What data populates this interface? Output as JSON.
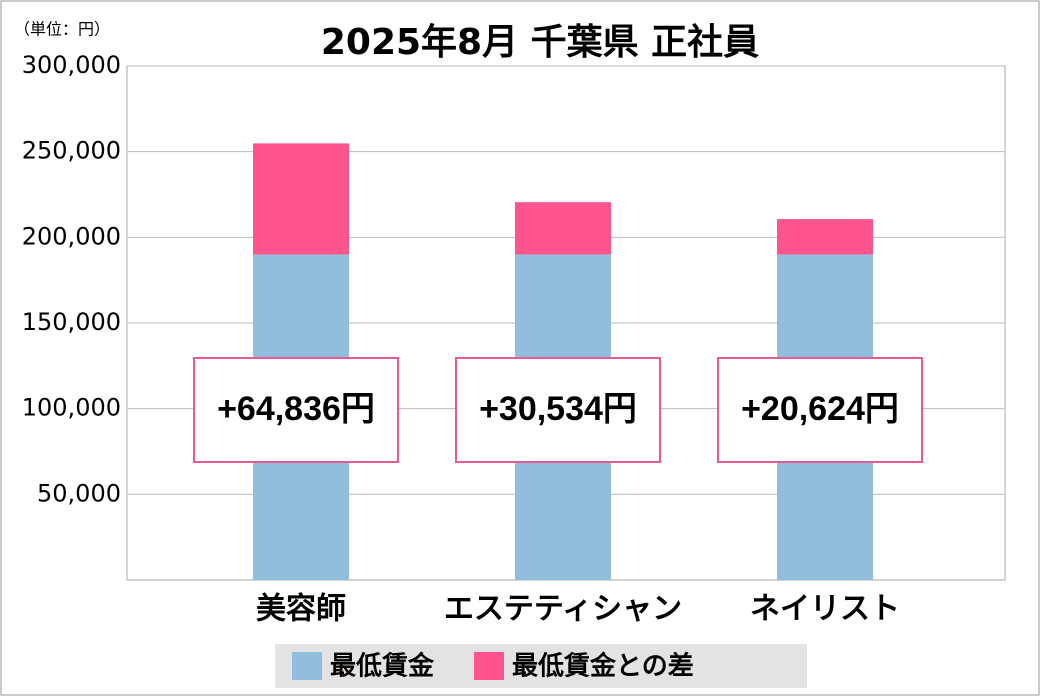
{
  "chart_data": {
    "type": "stacked_bar",
    "title": "2025年8月 千葉県 正社員",
    "unit_label": "（単位：円）",
    "categories": [
      "美容師",
      "エステティシャン",
      "ネイリスト"
    ],
    "series": [
      {
        "name": "最低賃金",
        "color": "#92bedd",
        "values": [
          190000,
          190000,
          190000
        ]
      },
      {
        "name": "最低賃金との差",
        "color": "#fd548c",
        "values": [
          64836,
          30534,
          20624
        ],
        "value_labels": [
          "+64,836円",
          "+30,534円",
          "+20,624円"
        ]
      }
    ],
    "ylim": [
      0,
      300000
    ],
    "yticks": [
      {
        "value": 50000,
        "label": "50,000"
      },
      {
        "value": 100000,
        "label": "100,000"
      },
      {
        "value": 150000,
        "label": "150,000"
      },
      {
        "value": 200000,
        "label": "200,000"
      },
      {
        "value": 250000,
        "label": "250,000"
      },
      {
        "value": 300000,
        "label": "300,000"
      }
    ],
    "grid": true
  }
}
